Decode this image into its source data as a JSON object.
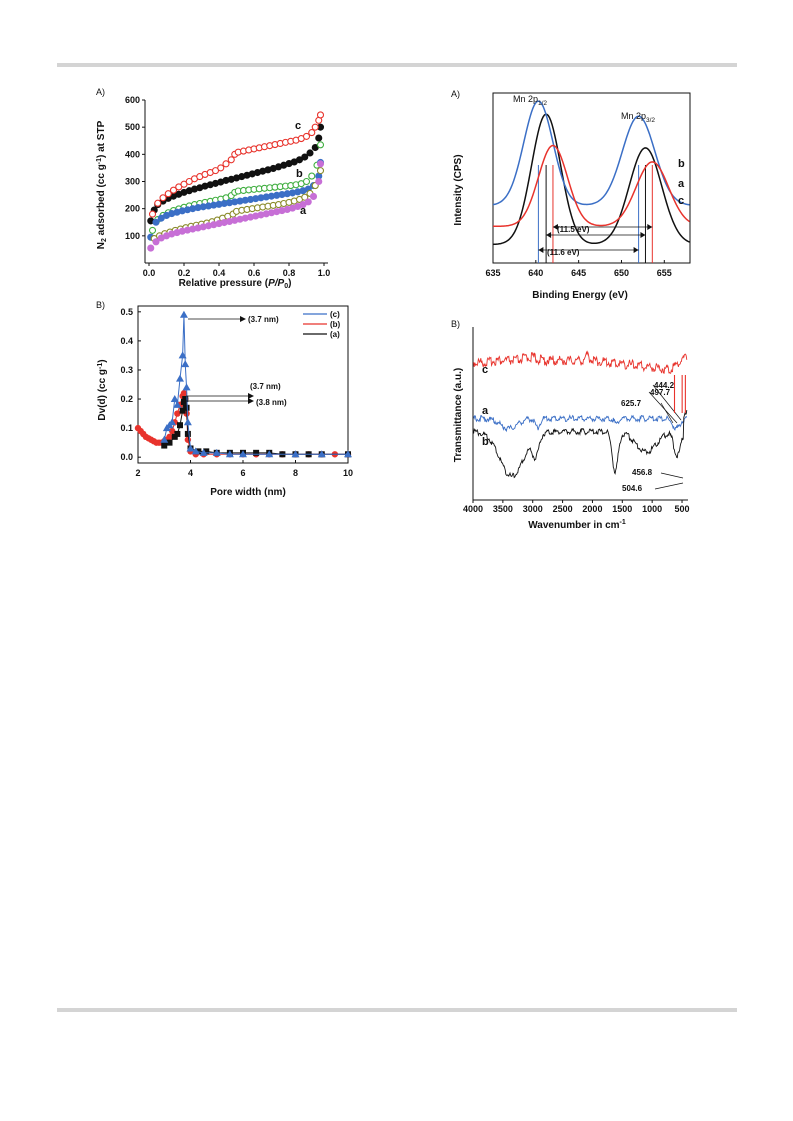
{
  "page": {
    "background": "#ffffff",
    "rule_color": "#d4d4d4"
  },
  "colors": {
    "black": "#111111",
    "red": "#e8332c",
    "blue": "#3b6fc6",
    "green": "#3fae3f",
    "magenta": "#c76fd6",
    "olive": "#8a8a2a",
    "blue_legend": "#3b6fc6",
    "red_legend": "#e8332c"
  },
  "chart_data": [
    {
      "id": "isotherm",
      "type": "scatter",
      "panel_label": "A)",
      "xlabel_main": "Relative pressure (",
      "xlabel_italic": "P/P",
      "xlabel_sub": "0",
      "xlabel_end": ")",
      "ylabel_pre": "N",
      "ylabel_sub": "2",
      "ylabel_mid": " adsorbed (cc g",
      "ylabel_sup": "-1",
      "ylabel_end": ") at STP",
      "xlim": [
        0,
        1.0
      ],
      "ylim": [
        0,
        600
      ],
      "xticks": [
        "0.0",
        "0.2",
        "0.4",
        "0.6",
        "0.8",
        "1.0"
      ],
      "yticks": [
        "100",
        "200",
        "300",
        "400",
        "500",
        "600"
      ],
      "series_labels": [
        "c",
        "b",
        "a"
      ],
      "series": [
        {
          "name": "c",
          "kind": "ads",
          "color": "#111111",
          "filled": true,
          "x": [
            0.01,
            0.03,
            0.05,
            0.08,
            0.11,
            0.14,
            0.17,
            0.2,
            0.23,
            0.26,
            0.29,
            0.32,
            0.35,
            0.38,
            0.41,
            0.44,
            0.47,
            0.5,
            0.53,
            0.56,
            0.59,
            0.62,
            0.65,
            0.68,
            0.71,
            0.74,
            0.77,
            0.8,
            0.83,
            0.86,
            0.89,
            0.92,
            0.95,
            0.97,
            0.98
          ],
          "y": [
            155,
            195,
            215,
            228,
            238,
            246,
            253,
            260,
            266,
            272,
            277,
            283,
            288,
            293,
            298,
            304,
            308,
            313,
            318,
            323,
            328,
            333,
            338,
            343,
            348,
            354,
            360,
            366,
            372,
            380,
            390,
            405,
            425,
            460,
            500
          ]
        },
        {
          "name": "c",
          "kind": "des",
          "color": "#e8332c",
          "filled": false,
          "x": [
            0.02,
            0.05,
            0.08,
            0.11,
            0.14,
            0.17,
            0.2,
            0.23,
            0.26,
            0.29,
            0.32,
            0.35,
            0.38,
            0.41,
            0.44,
            0.47,
            0.49,
            0.51,
            0.54,
            0.57,
            0.6,
            0.63,
            0.66,
            0.69,
            0.72,
            0.75,
            0.78,
            0.81,
            0.84,
            0.87,
            0.9,
            0.93,
            0.95,
            0.97,
            0.98
          ],
          "y": [
            180,
            220,
            240,
            255,
            268,
            280,
            290,
            300,
            310,
            318,
            326,
            333,
            340,
            350,
            365,
            380,
            400,
            408,
            412,
            416,
            420,
            424,
            428,
            432,
            436,
            440,
            444,
            448,
            452,
            458,
            466,
            480,
            500,
            525,
            545
          ]
        },
        {
          "name": "b",
          "kind": "des",
          "color": "#3fae3f",
          "filled": false,
          "x": [
            0.02,
            0.05,
            0.08,
            0.11,
            0.14,
            0.17,
            0.2,
            0.23,
            0.26,
            0.29,
            0.32,
            0.35,
            0.38,
            0.41,
            0.44,
            0.47,
            0.49,
            0.51,
            0.54,
            0.57,
            0.6,
            0.63,
            0.66,
            0.69,
            0.72,
            0.75,
            0.78,
            0.81,
            0.84,
            0.87,
            0.9,
            0.93,
            0.96,
            0.98
          ],
          "y": [
            120,
            160,
            175,
            185,
            193,
            199,
            205,
            210,
            215,
            219,
            223,
            227,
            231,
            235,
            240,
            248,
            260,
            265,
            267,
            269,
            271,
            273,
            275,
            277,
            279,
            281,
            283,
            285,
            288,
            292,
            300,
            320,
            360,
            435
          ]
        },
        {
          "name": "b",
          "kind": "ads",
          "color": "#3b6fc6",
          "filled": true,
          "x": [
            0.01,
            0.04,
            0.07,
            0.1,
            0.13,
            0.16,
            0.19,
            0.22,
            0.25,
            0.28,
            0.31,
            0.34,
            0.37,
            0.4,
            0.43,
            0.46,
            0.49,
            0.52,
            0.55,
            0.58,
            0.61,
            0.64,
            0.67,
            0.7,
            0.73,
            0.76,
            0.79,
            0.82,
            0.85,
            0.88,
            0.91,
            0.94,
            0.97,
            0.98
          ],
          "y": [
            95,
            150,
            165,
            175,
            182,
            187,
            192,
            196,
            200,
            204,
            207,
            210,
            213,
            216,
            219,
            222,
            225,
            228,
            231,
            234,
            237,
            240,
            243,
            246,
            249,
            252,
            255,
            258,
            262,
            266,
            272,
            285,
            320,
            370
          ]
        },
        {
          "name": "a",
          "kind": "des",
          "color": "#8a8a2a",
          "filled": false,
          "x": [
            0.03,
            0.06,
            0.09,
            0.12,
            0.15,
            0.18,
            0.21,
            0.24,
            0.27,
            0.3,
            0.33,
            0.36,
            0.39,
            0.42,
            0.45,
            0.48,
            0.5,
            0.53,
            0.56,
            0.59,
            0.62,
            0.65,
            0.68,
            0.71,
            0.74,
            0.77,
            0.8,
            0.83,
            0.86,
            0.89,
            0.92,
            0.95,
            0.98
          ],
          "y": [
            90,
            100,
            108,
            114,
            120,
            125,
            130,
            135,
            139,
            143,
            147,
            152,
            158,
            165,
            172,
            180,
            190,
            194,
            197,
            200,
            203,
            206,
            209,
            212,
            215,
            219,
            223,
            228,
            234,
            242,
            256,
            285,
            340
          ]
        },
        {
          "name": "a",
          "kind": "ads",
          "color": "#c76fd6",
          "filled": true,
          "x": [
            0.01,
            0.04,
            0.07,
            0.1,
            0.13,
            0.16,
            0.19,
            0.22,
            0.25,
            0.28,
            0.31,
            0.34,
            0.37,
            0.4,
            0.43,
            0.46,
            0.49,
            0.52,
            0.55,
            0.58,
            0.61,
            0.64,
            0.67,
            0.7,
            0.73,
            0.76,
            0.79,
            0.82,
            0.85,
            0.88,
            0.91,
            0.94,
            0.97,
            0.98
          ],
          "y": [
            55,
            78,
            92,
            100,
            107,
            112,
            117,
            121,
            125,
            129,
            133,
            137,
            141,
            145,
            149,
            153,
            157,
            161,
            165,
            169,
            173,
            177,
            181,
            185,
            189,
            193,
            197,
            202,
            208,
            215,
            225,
            245,
            300,
            365
          ]
        }
      ]
    },
    {
      "id": "poresize",
      "type": "scatter",
      "panel_label": "B)",
      "xlabel": "Pore width (nm)",
      "ylabel_pre": "Dv(d) (cc g",
      "ylabel_sup": "-1",
      "ylabel_end": ")",
      "xlim": [
        2,
        10
      ],
      "ylim": [
        -0.02,
        0.52
      ],
      "xticks": [
        "2",
        "4",
        "6",
        "8",
        "10"
      ],
      "ytick_values": [
        0.0,
        0.1,
        0.2,
        0.3,
        0.4,
        0.5
      ],
      "yticks": [
        "0.0",
        "0.1",
        "0.2",
        "0.3",
        "0.4",
        "0.5"
      ],
      "legend": [
        "(c)",
        "(b)",
        "(a)"
      ],
      "legend_colors": [
        "#3b6fc6",
        "#e8332c",
        "#111111"
      ],
      "annotations": [
        "(3.7 nm)",
        "(3.7 nm)",
        "(3.8 nm)"
      ],
      "series": [
        {
          "name": "(b)",
          "color": "#e8332c",
          "marker": "circle",
          "x": [
            2.0,
            2.1,
            2.2,
            2.3,
            2.4,
            2.5,
            2.6,
            2.7,
            2.8,
            2.9,
            3.0,
            3.1,
            3.2,
            3.3,
            3.4,
            3.5,
            3.6,
            3.7,
            3.75,
            3.8,
            3.85,
            3.9,
            4.0,
            4.2,
            4.5,
            5.0,
            5.5,
            6.0,
            6.5,
            7.0,
            7.5,
            8.0,
            8.5,
            9.0,
            9.5,
            10.0
          ],
          "y": [
            0.1,
            0.09,
            0.08,
            0.07,
            0.065,
            0.06,
            0.055,
            0.05,
            0.05,
            0.05,
            0.055,
            0.06,
            0.07,
            0.09,
            0.12,
            0.15,
            0.18,
            0.21,
            0.22,
            0.2,
            0.15,
            0.06,
            0.02,
            0.01,
            0.01,
            0.01,
            0.01,
            0.01,
            0.01,
            0.01,
            0.01,
            0.01,
            0.01,
            0.01,
            0.01,
            0.01
          ]
        },
        {
          "name": "(a)",
          "color": "#111111",
          "marker": "square",
          "x": [
            3.0,
            3.2,
            3.4,
            3.5,
            3.6,
            3.7,
            3.75,
            3.8,
            3.85,
            3.9,
            4.0,
            4.3,
            4.6,
            5.0,
            5.5,
            6.0,
            6.5,
            7.0,
            7.5,
            8.0,
            8.5,
            9.0,
            10.0
          ],
          "y": [
            0.04,
            0.05,
            0.07,
            0.08,
            0.11,
            0.16,
            0.19,
            0.2,
            0.17,
            0.08,
            0.03,
            0.02,
            0.02,
            0.015,
            0.015,
            0.015,
            0.015,
            0.015,
            0.01,
            0.01,
            0.01,
            0.01,
            0.01
          ]
        },
        {
          "name": "(c)",
          "color": "#3b6fc6",
          "marker": "triangle",
          "x": [
            3.0,
            3.1,
            3.2,
            3.3,
            3.4,
            3.5,
            3.6,
            3.7,
            3.75,
            3.8,
            3.85,
            3.9,
            4.0,
            4.2,
            4.5,
            5.0,
            5.5,
            6.0,
            7.0,
            8.0,
            9.0,
            10.0
          ],
          "y": [
            0.06,
            0.1,
            0.11,
            0.12,
            0.2,
            0.18,
            0.27,
            0.35,
            0.49,
            0.32,
            0.24,
            0.12,
            0.03,
            0.02,
            0.015,
            0.015,
            0.01,
            0.01,
            0.01,
            0.01,
            0.01,
            0.01
          ]
        }
      ]
    },
    {
      "id": "xps",
      "type": "line",
      "panel_label": "A)",
      "xlabel": "Binding Energy (eV)",
      "ylabel": "Intensity (CPS)",
      "xlim": [
        635,
        658
      ],
      "xticks": [
        "635",
        "640",
        "645",
        "650",
        "655"
      ],
      "xtick_values": [
        635,
        640,
        645,
        650,
        655
      ],
      "peak_labels": [
        {
          "text": "Mn 2p",
          "sub": "1/2"
        },
        {
          "text": "Mn 2p",
          "sub": "3/2"
        }
      ],
      "series_labels": [
        "b",
        "a",
        "c"
      ],
      "annotations": [
        "(11.5 eV)",
        "(11.6 eV)"
      ],
      "series": [
        {
          "name": "b",
          "color": "#111111",
          "peak1": 641.2,
          "peak2": 652.8,
          "h1": 1.0,
          "h2": 0.78,
          "base": 0.08
        },
        {
          "name": "a",
          "color": "#3b6fc6",
          "peak1": 640.3,
          "peak2": 652.0,
          "h1": 0.8,
          "h2": 0.72,
          "base": 0.38
        },
        {
          "name": "c",
          "color": "#e8332c",
          "peak1": 642.0,
          "peak2": 653.6,
          "h1": 0.62,
          "h2": 0.52,
          "base": 0.22
        }
      ]
    },
    {
      "id": "ftir",
      "type": "line",
      "panel_label": "B)",
      "xlabel_pre": "Wavenumber in cm",
      "xlabel_sup": "-1",
      "ylabel": "Transmittance (a.u.)",
      "xlim": [
        4000,
        400
      ],
      "xticks": [
        "4000",
        "3500",
        "3000",
        "2500",
        "2000",
        "1500",
        "1000",
        "500"
      ],
      "xtick_values": [
        4000,
        3500,
        3000,
        2500,
        2000,
        1500,
        1000,
        500
      ],
      "series_labels": [
        "c",
        "a",
        "b"
      ],
      "band_labels": [
        "444.2",
        "497.7",
        "625.7",
        "456.8",
        "504.6"
      ],
      "series": [
        {
          "name": "c",
          "color": "#e8332c"
        },
        {
          "name": "a",
          "color": "#3b6fc6"
        },
        {
          "name": "b",
          "color": "#111111"
        }
      ]
    }
  ]
}
